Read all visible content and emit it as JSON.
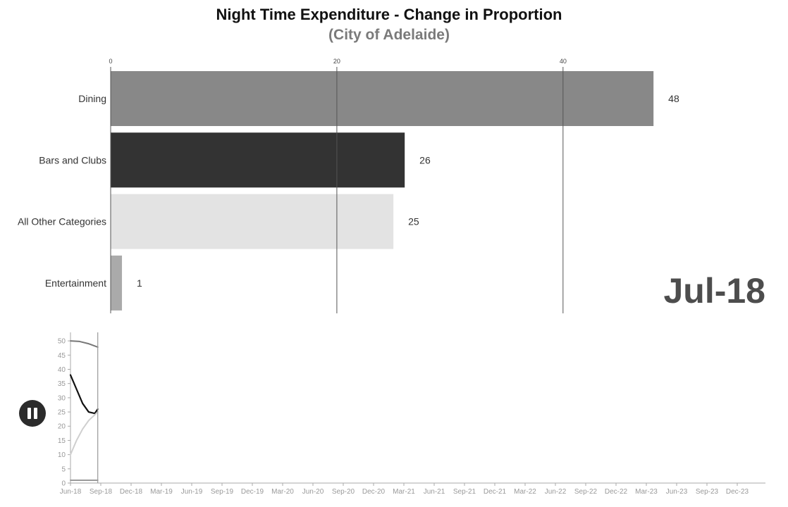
{
  "chart_data": [
    {
      "type": "bar",
      "title": "Night Time Expenditure - Change in Proportion",
      "subtitle": "(City of Adelaide)",
      "orientation": "horizontal",
      "categories": [
        "Dining",
        "Bars and Clubs",
        "All Other Categories",
        "Entertainment"
      ],
      "values": [
        48,
        26,
        25,
        1
      ],
      "value_labels": [
        "48",
        "26",
        "25",
        "1"
      ],
      "colors": [
        "#888888",
        "#333333",
        "#e3e3e3",
        "#aaaaaa"
      ],
      "x_ticks": [
        0,
        20,
        40
      ],
      "x_tick_labels": [
        "0",
        "20",
        "40"
      ],
      "xlim": [
        0,
        48.3
      ],
      "grid": true,
      "current_period": "Jul-18"
    },
    {
      "type": "line",
      "x_tick_labels": [
        "Jun-18",
        "Sep-18",
        "Dec-18",
        "Mar-19",
        "Jun-19",
        "Sep-19",
        "Dec-19",
        "Mar-20",
        "Jun-20",
        "Sep-20",
        "Dec-20",
        "Mar-21",
        "Jun-21",
        "Sep-21",
        "Dec-21",
        "Mar-22",
        "Jun-22",
        "Sep-22",
        "Dec-22",
        "Mar-23",
        "Jun-23",
        "Sep-23",
        "Dec-23"
      ],
      "y_ticks": [
        0,
        5,
        10,
        15,
        20,
        25,
        30,
        35,
        40,
        45,
        50
      ],
      "ylim": [
        0,
        53
      ],
      "series": [
        {
          "category": "Dining",
          "color": "#777777",
          "x": [
            0,
            0.3,
            0.6,
            0.9
          ],
          "values": [
            50,
            49.8,
            49,
            47.8
          ]
        },
        {
          "category": "Bars and Clubs",
          "color": "#111111",
          "x": [
            0,
            0.2,
            0.4,
            0.6,
            0.8,
            0.9
          ],
          "values": [
            38,
            33,
            28,
            25,
            24.5,
            26
          ]
        },
        {
          "category": "All Other Categories",
          "color": "#cfcfcf",
          "x": [
            0,
            0.2,
            0.4,
            0.6,
            0.8,
            0.9
          ],
          "values": [
            10,
            15,
            19,
            22,
            24,
            25
          ]
        },
        {
          "category": "Entertainment",
          "color": "#9a9a9a",
          "x": [
            0,
            0.45,
            0.9
          ],
          "values": [
            1,
            1,
            1
          ]
        }
      ],
      "playhead_x": 0.9
    }
  ],
  "controls": {
    "pause_icon": "pause-icon"
  }
}
